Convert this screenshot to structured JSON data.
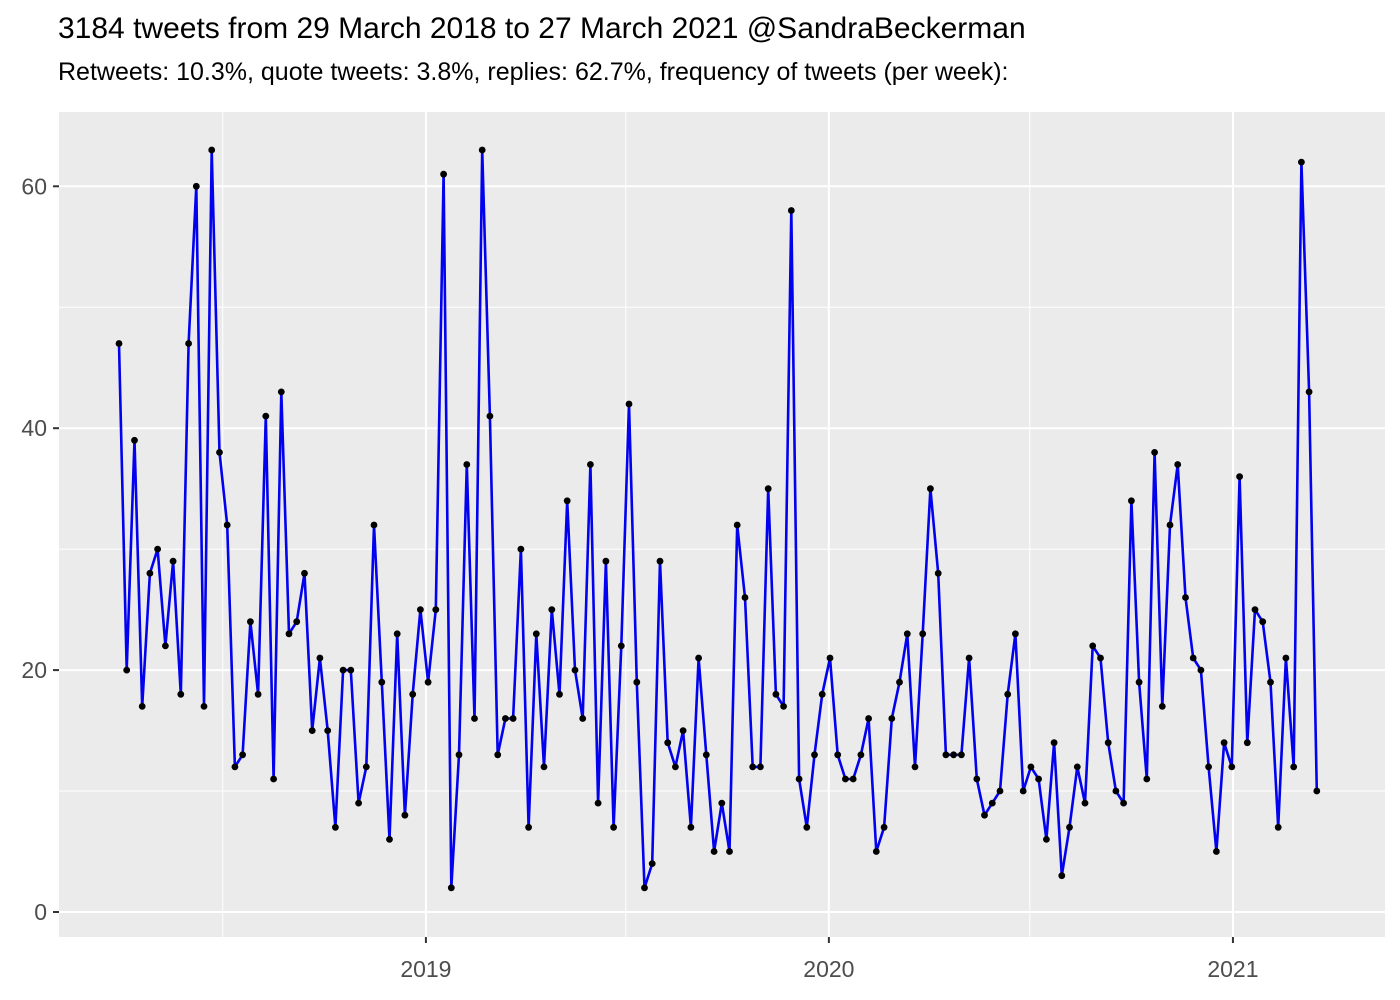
{
  "chart_data": {
    "type": "line",
    "title": "3184 tweets from 29 March 2018 to 27 March 2021 @SandraBeckerman",
    "subtitle": "Retweets: 10.3%, quote tweets: 3.8%, replies: 62.7%, frequency of tweets (per week):",
    "x_start_date": "2018-03-29",
    "x_end_date": "2021-03-27",
    "point_interval": "weekly",
    "total_tweets": 3184,
    "x_ticks": [
      {
        "label": "2019",
        "date": "2019-01-01"
      },
      {
        "label": "2020",
        "date": "2020-01-01"
      },
      {
        "label": "2021",
        "date": "2021-01-01"
      }
    ],
    "x_minor_dates": [
      "2018-07-01",
      "2019-07-01",
      "2020-07-01"
    ],
    "y_ticks": [
      {
        "label": "0",
        "value": 0
      },
      {
        "label": "20",
        "value": 20
      },
      {
        "label": "40",
        "value": 40
      },
      {
        "label": "60",
        "value": 60
      }
    ],
    "y_minor": [
      10,
      30,
      50
    ],
    "ylim": [
      0,
      63
    ],
    "xlabel": "",
    "ylabel": "",
    "grid": "white-on-grey",
    "legend": "none",
    "series": [
      {
        "name": "tweets-per-week",
        "values": [
          47,
          20,
          39,
          17,
          28,
          30,
          22,
          29,
          18,
          47,
          60,
          17,
          63,
          38,
          32,
          12,
          13,
          24,
          18,
          41,
          11,
          43,
          23,
          24,
          28,
          15,
          21,
          15,
          7,
          20,
          20,
          9,
          12,
          32,
          19,
          6,
          23,
          8,
          18,
          25,
          19,
          25,
          61,
          2,
          13,
          37,
          16,
          63,
          41,
          13,
          16,
          16,
          30,
          7,
          23,
          12,
          25,
          18,
          34,
          20,
          16,
          37,
          9,
          29,
          7,
          22,
          42,
          19,
          2,
          4,
          29,
          14,
          12,
          15,
          7,
          21,
          13,
          5,
          9,
          5,
          32,
          26,
          12,
          12,
          35,
          18,
          17,
          58,
          11,
          7,
          13,
          18,
          21,
          13,
          11,
          11,
          13,
          16,
          5,
          7,
          16,
          19,
          23,
          12,
          23,
          35,
          28,
          13,
          13,
          13,
          21,
          11,
          8,
          9,
          10,
          18,
          23,
          10,
          12,
          11,
          6,
          14,
          3,
          7,
          12,
          9,
          22,
          21,
          14,
          10,
          9,
          34,
          19,
          11,
          38,
          17,
          32,
          37,
          26,
          21,
          20,
          12,
          5,
          14,
          12,
          36,
          14,
          25,
          24,
          19,
          7,
          21,
          12,
          62,
          43,
          10
        ]
      }
    ],
    "colors": {
      "line": "#0202EE",
      "point": "#000000",
      "panel_background": "#EBEBEB",
      "grid": "#FFFFFF",
      "axis_text": "#4D4D4D",
      "tick_mark": "#333333",
      "title_text": "#000000",
      "page_background": "#FFFFFF"
    }
  }
}
